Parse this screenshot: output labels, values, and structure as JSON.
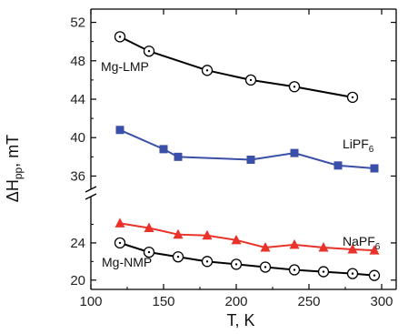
{
  "chart_data": {
    "type": "line",
    "title": "",
    "xlabel": "T, K",
    "ylabel": "ΔH",
    "ylabel_sub": "pp",
    "ylabel_tail": ", mT",
    "xlim": [
      100,
      310
    ],
    "x_ticks": [
      100,
      150,
      200,
      250,
      300
    ],
    "x_tick_labels": [
      "100",
      "150",
      "200",
      "250",
      "300"
    ],
    "y_axis_broken": true,
    "y_upper_range": [
      35,
      53
    ],
    "y_lower_range": [
      19,
      28
    ],
    "y_upper_ticks": [
      36,
      40,
      44,
      48,
      52
    ],
    "y_upper_tick_labels": [
      "36",
      "40",
      "44",
      "48",
      "52"
    ],
    "y_lower_ticks": [
      20,
      24
    ],
    "y_lower_tick_labels": [
      "20",
      "24"
    ],
    "grid": false,
    "series": [
      {
        "name": "Mg-LMP",
        "label_text": "Mg-LMP",
        "marker": "open-circle",
        "color": "#000000",
        "x": [
          120,
          140,
          180,
          210,
          240,
          280
        ],
        "y": [
          50.5,
          49.0,
          47.0,
          46.0,
          45.3,
          44.2
        ]
      },
      {
        "name": "LiPF6",
        "label_text": "LiPF",
        "label_sub": "6",
        "marker": "square",
        "color": "#3a4fa8",
        "x": [
          120,
          150,
          160,
          210,
          240,
          270,
          295
        ],
        "y": [
          40.8,
          38.8,
          38.0,
          37.7,
          38.4,
          37.1,
          36.8
        ]
      },
      {
        "name": "NaPF6",
        "label_text": "NaPF",
        "label_sub": "6",
        "marker": "triangle",
        "color": "#e8322a",
        "x": [
          120,
          140,
          160,
          180,
          200,
          220,
          240,
          260,
          280,
          295
        ],
        "y": [
          26.1,
          25.6,
          24.9,
          24.8,
          24.3,
          23.5,
          23.8,
          23.5,
          23.3,
          23.2
        ]
      },
      {
        "name": "Mg-NMP",
        "label_text": "Mg-NMP",
        "marker": "open-circle",
        "color": "#000000",
        "x": [
          120,
          140,
          160,
          180,
          200,
          220,
          240,
          260,
          280,
          295
        ],
        "y": [
          24.0,
          23.0,
          22.5,
          22.0,
          21.7,
          21.4,
          21.1,
          20.9,
          20.7,
          20.5
        ]
      }
    ]
  }
}
